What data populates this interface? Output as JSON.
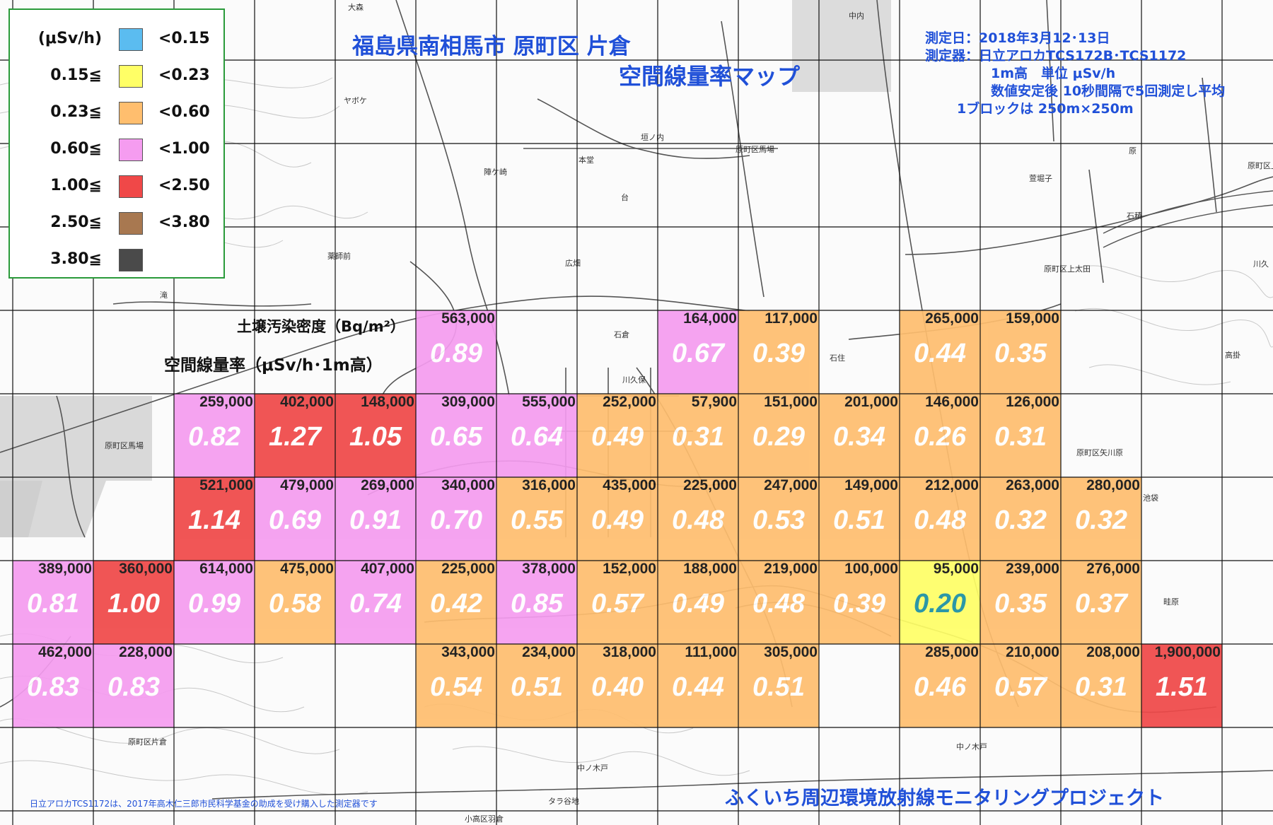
{
  "title": {
    "line1": "福島県南相馬市 原町区 片倉",
    "line2": "空間線量率マップ"
  },
  "info": {
    "date": "測定日：2018年3月12･13日",
    "device": "測定器：日立アロカTCS172B･TCS1172",
    "height_unit": "1m高　単位 μSv/h",
    "method": "数値安定後 10秒間隔で5回測定し平均",
    "block": "1ブロックは 250m×250m"
  },
  "labels": {
    "soil": "土壌汚染密度（Bq/m²）",
    "dose": "空間線量率（μSv/h･1m高）"
  },
  "legend": {
    "unit": "(μSv/h)",
    "rows": [
      {
        "min": "(μSv/h)",
        "max": "<0.15",
        "color": "#5bbcf0"
      },
      {
        "min": "0.15≦",
        "max": "<0.23",
        "color": "#ffff66"
      },
      {
        "min": "0.23≦",
        "max": "<0.60",
        "color": "#ffbe6e"
      },
      {
        "min": "0.60≦",
        "max": "<1.00",
        "color": "#f59cf0"
      },
      {
        "min": "1.00≦",
        "max": "<2.50",
        "color": "#f04848"
      },
      {
        "min": "2.50≦",
        "max": "<3.80",
        "color": "#a87850"
      },
      {
        "min": "3.80≦",
        "max": "",
        "color": "#4a4a4a"
      }
    ]
  },
  "colors": {
    "orange": "#ffbe6e",
    "pink": "#f59cf0",
    "red": "#f04848",
    "yellow": "#ffff66",
    "grid": "#111111",
    "title_blue": "#2050d8",
    "legend_border": "#2a9a3a"
  },
  "cells": [
    {
      "row": 0,
      "col": 5,
      "density": "563,000",
      "dose": "0.89",
      "level": "pink"
    },
    {
      "row": 0,
      "col": 8,
      "density": "164,000",
      "dose": "0.67",
      "level": "pink"
    },
    {
      "row": 0,
      "col": 9,
      "density": "117,000",
      "dose": "0.39",
      "level": "orange"
    },
    {
      "row": 0,
      "col": 11,
      "density": "265,000",
      "dose": "0.44",
      "level": "orange"
    },
    {
      "row": 0,
      "col": 12,
      "density": "159,000",
      "dose": "0.35",
      "level": "orange"
    },
    {
      "row": 1,
      "col": 2,
      "density": "259,000",
      "dose": "0.82",
      "level": "pink"
    },
    {
      "row": 1,
      "col": 3,
      "density": "402,000",
      "dose": "1.27",
      "level": "red"
    },
    {
      "row": 1,
      "col": 4,
      "density": "148,000",
      "dose": "1.05",
      "level": "red"
    },
    {
      "row": 1,
      "col": 5,
      "density": "309,000",
      "dose": "0.65",
      "level": "pink"
    },
    {
      "row": 1,
      "col": 6,
      "density": "555,000",
      "dose": "0.64",
      "level": "pink"
    },
    {
      "row": 1,
      "col": 7,
      "density": "252,000",
      "dose": "0.49",
      "level": "orange"
    },
    {
      "row": 1,
      "col": 8,
      "density": "57,900",
      "dose": "0.31",
      "level": "orange"
    },
    {
      "row": 1,
      "col": 9,
      "density": "151,000",
      "dose": "0.29",
      "level": "orange"
    },
    {
      "row": 1,
      "col": 10,
      "density": "201,000",
      "dose": "0.34",
      "level": "orange"
    },
    {
      "row": 1,
      "col": 11,
      "density": "146,000",
      "dose": "0.26",
      "level": "orange"
    },
    {
      "row": 1,
      "col": 12,
      "density": "126,000",
      "dose": "0.31",
      "level": "orange"
    },
    {
      "row": 2,
      "col": 2,
      "density": "521,000",
      "dose": "1.14",
      "level": "red"
    },
    {
      "row": 2,
      "col": 3,
      "density": "479,000",
      "dose": "0.69",
      "level": "pink"
    },
    {
      "row": 2,
      "col": 4,
      "density": "269,000",
      "dose": "0.91",
      "level": "pink"
    },
    {
      "row": 2,
      "col": 5,
      "density": "340,000",
      "dose": "0.70",
      "level": "pink"
    },
    {
      "row": 2,
      "col": 6,
      "density": "316,000",
      "dose": "0.55",
      "level": "orange"
    },
    {
      "row": 2,
      "col": 7,
      "density": "435,000",
      "dose": "0.49",
      "level": "orange"
    },
    {
      "row": 2,
      "col": 8,
      "density": "225,000",
      "dose": "0.48",
      "level": "orange"
    },
    {
      "row": 2,
      "col": 9,
      "density": "247,000",
      "dose": "0.53",
      "level": "orange"
    },
    {
      "row": 2,
      "col": 10,
      "density": "149,000",
      "dose": "0.51",
      "level": "orange"
    },
    {
      "row": 2,
      "col": 11,
      "density": "212,000",
      "dose": "0.48",
      "level": "orange"
    },
    {
      "row": 2,
      "col": 12,
      "density": "263,000",
      "dose": "0.32",
      "level": "orange"
    },
    {
      "row": 2,
      "col": 13,
      "density": "280,000",
      "dose": "0.32",
      "level": "orange"
    },
    {
      "row": 3,
      "col": 0,
      "density": "389,000",
      "dose": "0.81",
      "level": "pink"
    },
    {
      "row": 3,
      "col": 1,
      "density": "360,000",
      "dose": "1.00",
      "level": "red"
    },
    {
      "row": 3,
      "col": 2,
      "density": "614,000",
      "dose": "0.99",
      "level": "pink"
    },
    {
      "row": 3,
      "col": 3,
      "density": "475,000",
      "dose": "0.58",
      "level": "orange"
    },
    {
      "row": 3,
      "col": 4,
      "density": "407,000",
      "dose": "0.74",
      "level": "pink"
    },
    {
      "row": 3,
      "col": 5,
      "density": "225,000",
      "dose": "0.42",
      "level": "orange"
    },
    {
      "row": 3,
      "col": 6,
      "density": "378,000",
      "dose": "0.85",
      "level": "pink"
    },
    {
      "row": 3,
      "col": 7,
      "density": "152,000",
      "dose": "0.57",
      "level": "orange"
    },
    {
      "row": 3,
      "col": 8,
      "density": "188,000",
      "dose": "0.49",
      "level": "orange"
    },
    {
      "row": 3,
      "col": 9,
      "density": "219,000",
      "dose": "0.48",
      "level": "orange"
    },
    {
      "row": 3,
      "col": 10,
      "density": "100,000",
      "dose": "0.39",
      "level": "orange"
    },
    {
      "row": 3,
      "col": 11,
      "density": "95,000",
      "dose": "0.20",
      "level": "yellow"
    },
    {
      "row": 3,
      "col": 12,
      "density": "239,000",
      "dose": "0.35",
      "level": "orange"
    },
    {
      "row": 3,
      "col": 13,
      "density": "276,000",
      "dose": "0.37",
      "level": "orange"
    },
    {
      "row": 4,
      "col": 0,
      "density": "462,000",
      "dose": "0.83",
      "level": "pink"
    },
    {
      "row": 4,
      "col": 1,
      "density": "228,000",
      "dose": "0.83",
      "level": "pink"
    },
    {
      "row": 4,
      "col": 5,
      "density": "343,000",
      "dose": "0.54",
      "level": "orange"
    },
    {
      "row": 4,
      "col": 6,
      "density": "234,000",
      "dose": "0.51",
      "level": "orange"
    },
    {
      "row": 4,
      "col": 7,
      "density": "318,000",
      "dose": "0.40",
      "level": "orange"
    },
    {
      "row": 4,
      "col": 8,
      "density": "111,000",
      "dose": "0.44",
      "level": "orange"
    },
    {
      "row": 4,
      "col": 9,
      "density": "305,000",
      "dose": "0.51",
      "level": "orange"
    },
    {
      "row": 4,
      "col": 11,
      "density": "285,000",
      "dose": "0.46",
      "level": "orange"
    },
    {
      "row": 4,
      "col": 12,
      "density": "210,000",
      "dose": "0.57",
      "level": "orange"
    },
    {
      "row": 4,
      "col": 13,
      "density": "208,000",
      "dose": "0.31",
      "level": "orange"
    },
    {
      "row": 4,
      "col": 14,
      "density": "1,900,000",
      "dose": "1.51",
      "level": "red"
    }
  ],
  "places": [
    {
      "name": "大森"
    },
    {
      "name": "中内"
    },
    {
      "name": "ヤボケ"
    },
    {
      "name": "垣ノ内"
    },
    {
      "name": "原町区馬場"
    },
    {
      "name": "本堂"
    },
    {
      "name": "陣ケ崎"
    },
    {
      "name": "台"
    },
    {
      "name": "萱堀子"
    },
    {
      "name": "原"
    },
    {
      "name": "原町区上"
    },
    {
      "name": "石積"
    },
    {
      "name": "薬師前"
    },
    {
      "name": "広畑"
    },
    {
      "name": "原町区上太田"
    },
    {
      "name": "川久"
    },
    {
      "name": "滝"
    },
    {
      "name": "石倉"
    },
    {
      "name": "石住"
    },
    {
      "name": "川久保"
    },
    {
      "name": "高掛"
    },
    {
      "name": "原町区馬場"
    },
    {
      "name": "原町区矢川原"
    },
    {
      "name": "池袋"
    },
    {
      "name": "畦原"
    },
    {
      "name": "中ノ木戸"
    },
    {
      "name": "タラ谷地"
    },
    {
      "name": "原町区片倉"
    },
    {
      "name": "中ノ木戸"
    },
    {
      "name": "小高区羽倉"
    }
  ],
  "footnote": "日立アロカTCS1172は、2017年高木仁三郎市民科学基金の助成を受け購入した測定器です",
  "project": "ふくいち周辺環境放射線モニタリングプロジェクト"
}
